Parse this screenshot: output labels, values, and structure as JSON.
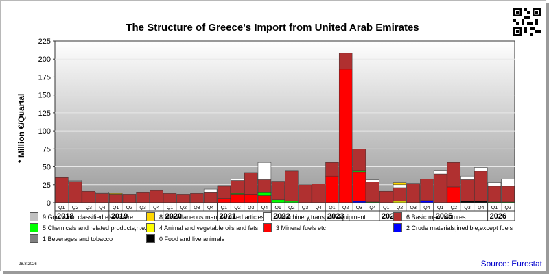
{
  "title": "The Structure of Greece's Import from United Arab Emirates",
  "date": "28.8.2026",
  "source": "Source: Eurostat",
  "chart_data": {
    "type": "bar",
    "stacked": true,
    "title": "The Structure of Greece's Import from United Arab Emirates",
    "ylabel": "* Million €/Quartal",
    "xlabel": "",
    "ylim": [
      0,
      225
    ],
    "yticks": [
      0,
      25,
      50,
      75,
      100,
      125,
      150,
      175,
      200,
      225
    ],
    "grid": true,
    "legend_position": "bottom",
    "categories": [
      "Q1",
      "Q2",
      "Q3",
      "Q4",
      "Q1",
      "Q2",
      "Q3",
      "Q4",
      "Q1",
      "Q2",
      "Q3",
      "Q4",
      "Q1",
      "Q2",
      "Q3",
      "Q4",
      "Q1",
      "Q2",
      "Q3",
      "Q4",
      "Q1",
      "Q2",
      "Q3",
      "Q4",
      "Q1",
      "Q2",
      "Q3",
      "Q4",
      "Q1",
      "Q2",
      "Q3",
      "Q4",
      "Q1",
      "Q2"
    ],
    "years": [
      {
        "label": "2018",
        "start": 0,
        "count": 4
      },
      {
        "label": "2019",
        "start": 4,
        "count": 4
      },
      {
        "label": "2020",
        "start": 8,
        "count": 4
      },
      {
        "label": "2021",
        "start": 12,
        "count": 4
      },
      {
        "label": "2022",
        "start": 16,
        "count": 4
      },
      {
        "label": "2023",
        "start": 20,
        "count": 4
      },
      {
        "label": "2024",
        "start": 24,
        "count": 4
      },
      {
        "label": "2025",
        "start": 28,
        "count": 4
      },
      {
        "label": "2026",
        "start": 32,
        "count": 2
      }
    ],
    "series": [
      {
        "name": "0 Food and live animals",
        "color": "#000000",
        "values": [
          0,
          0,
          0,
          0,
          0,
          0,
          0,
          0,
          0,
          0,
          0,
          0,
          0,
          0,
          0,
          0,
          0,
          0,
          0,
          0,
          0,
          0,
          0,
          0,
          0,
          0,
          0,
          0,
          0,
          0,
          2,
          2,
          0,
          0
        ]
      },
      {
        "name": "1 Beverages and tobacco",
        "color": "#808080",
        "values": [
          0,
          0,
          0,
          0,
          0,
          0,
          0,
          0,
          0,
          0,
          0,
          0,
          0,
          0,
          0,
          0,
          0,
          0,
          0,
          0,
          0,
          0,
          0,
          0,
          0,
          0,
          0,
          0,
          0,
          0,
          0,
          0,
          0,
          0
        ]
      },
      {
        "name": "2 Crude materials,inedible,except fuels",
        "color": "#0000ff",
        "values": [
          0,
          0,
          0,
          0,
          0,
          0,
          0,
          0,
          0,
          0,
          0,
          0,
          0,
          0,
          0,
          0,
          0,
          0,
          0,
          0,
          0,
          0,
          2,
          0,
          0,
          0,
          0,
          3,
          0,
          0,
          0,
          0,
          0,
          0
        ]
      },
      {
        "name": "3 Mineral fuels etc",
        "color": "#ff0000",
        "values": [
          0,
          0,
          0,
          0,
          0,
          0,
          0,
          0,
          0,
          0,
          0,
          0,
          6,
          12,
          12,
          10,
          0,
          0,
          0,
          0,
          37,
          186,
          41,
          0,
          0,
          0,
          0,
          0,
          0,
          22,
          0,
          0,
          0,
          0
        ]
      },
      {
        "name": "4 Animal and vegetable oils and fats",
        "color": "#ffff00",
        "values": [
          0,
          0,
          0,
          0,
          0,
          0,
          0,
          0,
          0,
          0,
          0,
          0,
          0,
          0,
          0,
          0,
          0,
          0,
          0,
          0,
          0,
          0,
          0,
          0,
          0,
          2,
          0,
          0,
          0,
          0,
          0,
          0,
          0,
          0
        ]
      },
      {
        "name": "5 Chemicals and related products,n.e.s.",
        "color": "#00ff00",
        "values": [
          0,
          0,
          0,
          0,
          0,
          0,
          0,
          0,
          0,
          0,
          0,
          0,
          0,
          1,
          0,
          4,
          4,
          2,
          0,
          0,
          0,
          0,
          2,
          1,
          0,
          0,
          0,
          0,
          0,
          0,
          0,
          0,
          1,
          1
        ]
      },
      {
        "name": "6 Basic manufactures",
        "color": "#b03030",
        "values": [
          35,
          30,
          16,
          13,
          12,
          12,
          14,
          17,
          13,
          12,
          13,
          14,
          17,
          18,
          30,
          18,
          26,
          42,
          25,
          26,
          19,
          22,
          30,
          28,
          16,
          19,
          27,
          30,
          40,
          34,
          30,
          42,
          22,
          22
        ]
      },
      {
        "name": "7 Machinery,transport equipment",
        "color": "#ffffff",
        "values": [
          0,
          1,
          1,
          1,
          0,
          0,
          0,
          0,
          0,
          0,
          0,
          5,
          1,
          2,
          0,
          24,
          0,
          1,
          0,
          0,
          0,
          0,
          0,
          3,
          0,
          4,
          0,
          0,
          5,
          0,
          5,
          5,
          5,
          10
        ]
      },
      {
        "name": "8 Miscellaneous manufactured articles",
        "color": "#ffd700",
        "values": [
          0,
          0,
          0,
          0,
          1,
          0,
          0,
          0,
          0,
          0,
          0,
          0,
          0,
          0,
          0,
          0,
          0,
          0,
          0,
          0,
          0,
          0,
          0,
          0,
          0,
          3,
          0,
          0,
          0,
          0,
          0,
          0,
          0,
          0
        ]
      },
      {
        "name": "9 Goods not classified elsewhere",
        "color": "#c0c0c0",
        "values": [
          0,
          0,
          0,
          0,
          0,
          0,
          0,
          0,
          0,
          0,
          0,
          0,
          0,
          0,
          0,
          0,
          0,
          0,
          0,
          0,
          0,
          0,
          0,
          1,
          0,
          0,
          0,
          0,
          0,
          0,
          0,
          0,
          0,
          0
        ]
      }
    ]
  }
}
